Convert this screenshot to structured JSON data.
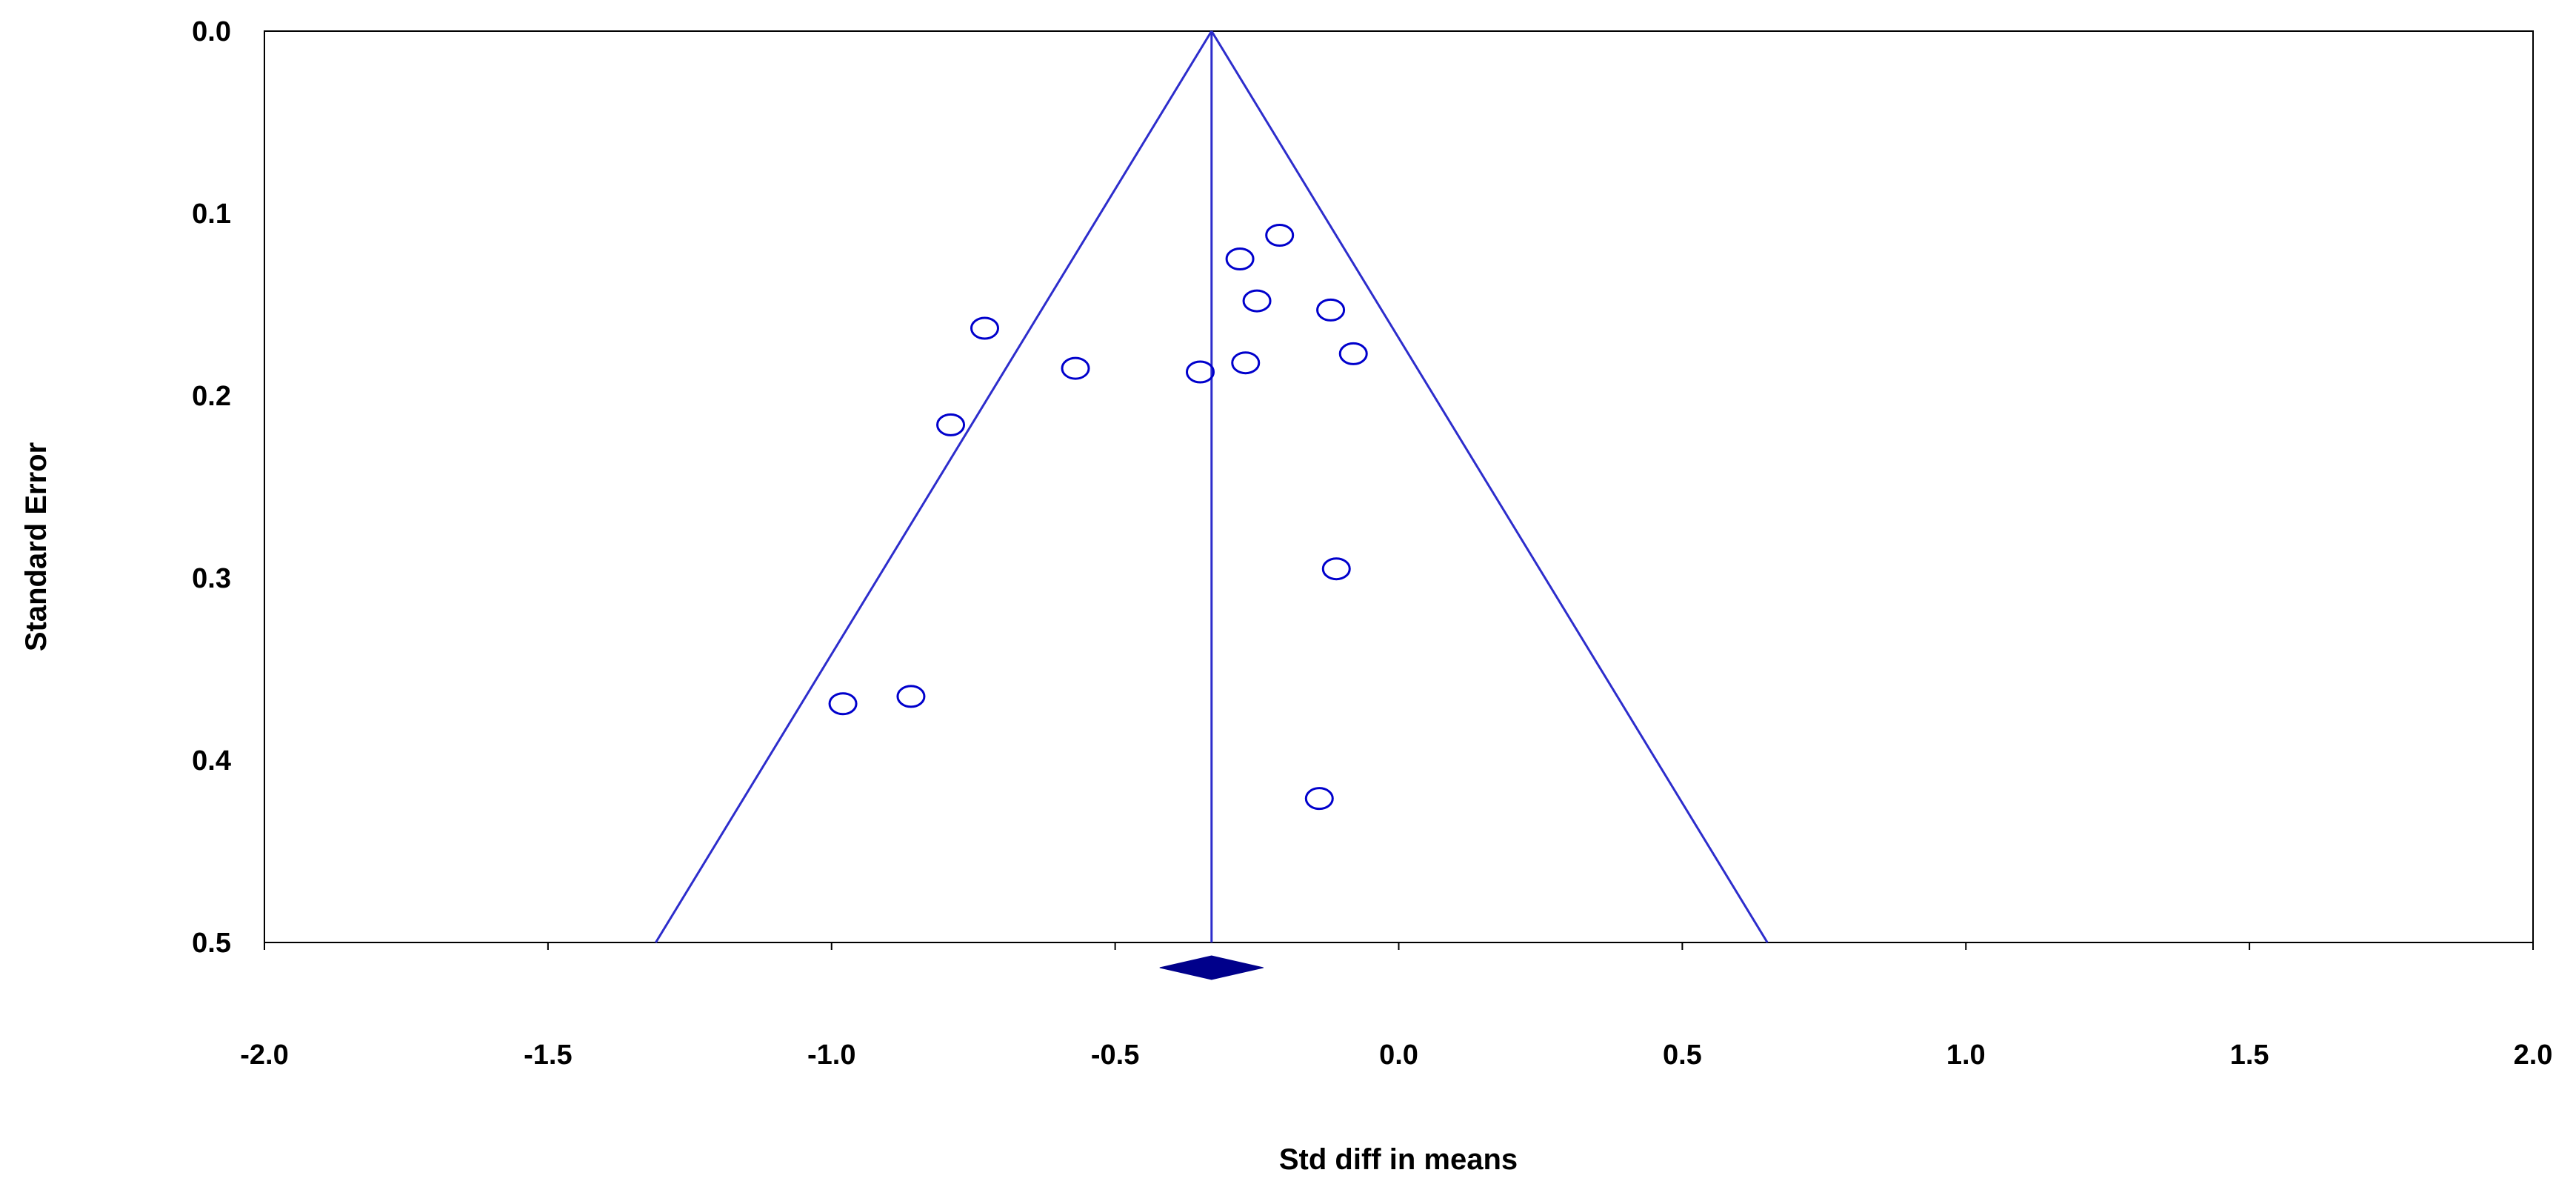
{
  "chart_data": {
    "type": "scatter",
    "xlabel": "Std diff in means",
    "ylabel": "Standard Error",
    "xlim": [
      -2.0,
      2.0
    ],
    "ylim": [
      0.0,
      0.5
    ],
    "y_axis_inverted": true,
    "x_ticks": [
      "-2.0",
      "-1.5",
      "-1.0",
      "-0.5",
      "0.0",
      "0.5",
      "1.0",
      "1.5",
      "2.0"
    ],
    "y_ticks": [
      "0.0",
      "0.1",
      "0.2",
      "0.3",
      "0.4",
      "0.5"
    ],
    "grid": false,
    "legend": "none",
    "pooled_estimate": -0.33,
    "funnel_se_max": 0.5,
    "points": [
      {
        "x": -0.21,
        "y": 0.112
      },
      {
        "x": -0.28,
        "y": 0.125
      },
      {
        "x": -0.25,
        "y": 0.148
      },
      {
        "x": -0.12,
        "y": 0.153
      },
      {
        "x": -0.73,
        "y": 0.163
      },
      {
        "x": -0.08,
        "y": 0.177
      },
      {
        "x": -0.27,
        "y": 0.182
      },
      {
        "x": -0.57,
        "y": 0.185
      },
      {
        "x": -0.35,
        "y": 0.187
      },
      {
        "x": -0.79,
        "y": 0.216
      },
      {
        "x": -0.11,
        "y": 0.295
      },
      {
        "x": -0.86,
        "y": 0.365
      },
      {
        "x": -0.98,
        "y": 0.369
      },
      {
        "x": -0.14,
        "y": 0.421
      }
    ],
    "colors": {
      "marker": "#0000cc",
      "funnel": "#2d2dcc",
      "diamond": "#00008b",
      "axis": "#000000"
    }
  }
}
